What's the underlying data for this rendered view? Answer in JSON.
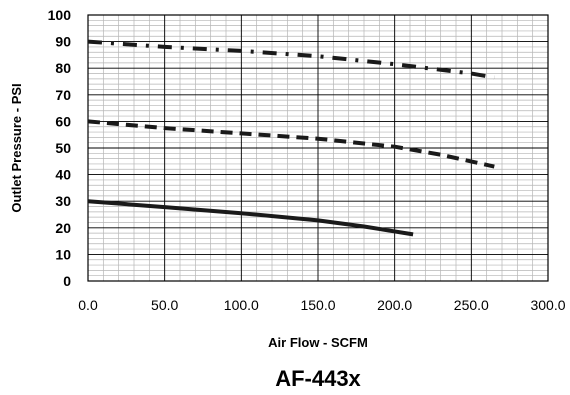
{
  "chart_data": {
    "type": "line",
    "title": "AF-443x",
    "xlabel": "Air Flow - SCFM",
    "ylabel": "Outlet Pressure - PSI",
    "xlim": [
      0,
      300
    ],
    "ylim": [
      0,
      100
    ],
    "x_ticks": [
      "0.0",
      "50.0",
      "100.0",
      "150.0",
      "200.0",
      "250.0",
      "300.0"
    ],
    "y_ticks": [
      "0",
      "10",
      "20",
      "30",
      "40",
      "50",
      "60",
      "70",
      "80",
      "90",
      "100"
    ],
    "grid": true,
    "legend": "none",
    "series": [
      {
        "style": "dash-dot",
        "color": "#1a1a1a",
        "x": [
          0,
          50,
          100,
          150,
          200,
          250,
          265
        ],
        "y": [
          90,
          88,
          86.5,
          84.5,
          81.5,
          78,
          76.5
        ]
      },
      {
        "style": "dashed",
        "color": "#1a1a1a",
        "x": [
          0,
          50,
          100,
          150,
          200,
          230,
          265
        ],
        "y": [
          60,
          57.5,
          55.5,
          53.5,
          50.5,
          47.5,
          43
        ]
      },
      {
        "style": "solid",
        "color": "#1a1a1a",
        "x": [
          0,
          50,
          100,
          150,
          180,
          212
        ],
        "y": [
          30,
          27.8,
          25.5,
          22.8,
          20.5,
          17.5
        ]
      }
    ]
  }
}
